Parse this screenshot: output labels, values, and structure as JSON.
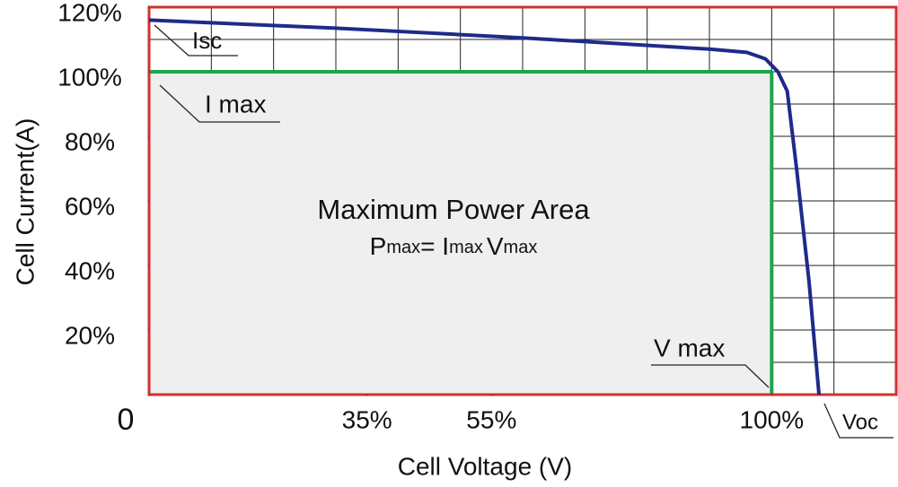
{
  "chart_data": {
    "type": "line",
    "y_label": "Cell Current(A)",
    "x_label": "Cell Voltage  (V)",
    "xlim": [
      0,
      120
    ],
    "ylim": [
      0,
      120
    ],
    "xticks": [
      0,
      {
        "value": 35,
        "label": "35%"
      },
      {
        "value": 55,
        "label": "55%"
      },
      {
        "value": 100,
        "label": "100%"
      }
    ],
    "yticks": [
      {
        "value": 20,
        "label": "20%"
      },
      {
        "value": 40,
        "label": "40%"
      },
      {
        "value": 60,
        "label": "60%"
      },
      {
        "value": 80,
        "label": "80%"
      },
      {
        "value": 100,
        "label": "100%"
      },
      {
        "value": 120,
        "label": "120%"
      }
    ],
    "xgrid": [
      10,
      20,
      30,
      40,
      50,
      60,
      70,
      80,
      90,
      100,
      110
    ],
    "ygrid": [
      10,
      20,
      30,
      40,
      50,
      60,
      70,
      80,
      90,
      100,
      110
    ],
    "grid": true,
    "series": [
      {
        "color": "#1f2a8a",
        "x": [
          0,
          30,
          60,
          90,
          96,
          99,
          101,
          102.5,
          104,
          106,
          107.6
        ],
        "values": [
          116,
          113.5,
          110.5,
          107,
          106,
          104,
          100,
          94,
          70,
          35,
          0
        ]
      }
    ],
    "vmax": 100,
    "imax": 100,
    "frame_color": "#d0312d",
    "pmax_color": "#1aa64a",
    "area_title": "Maximum Power Area",
    "formula": [
      "P",
      "max",
      "= ",
      "I",
      "max",
      "V",
      "max"
    ],
    "annotations": {
      "isc": "Isc",
      "imax": "I max",
      "vmax": "V max",
      "voc": "Voc"
    }
  }
}
